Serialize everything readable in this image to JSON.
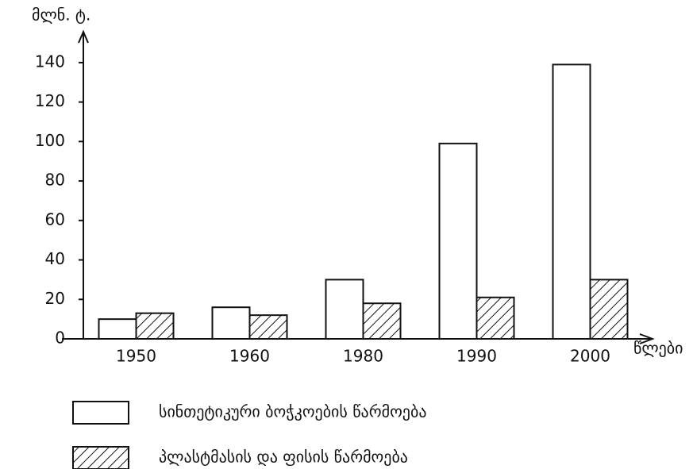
{
  "chart_data": {
    "type": "bar",
    "y_label": "მლნ. ტ.",
    "x_label": "წლები",
    "categories": [
      "1950",
      "1960",
      "1980",
      "1990",
      "2000"
    ],
    "series": [
      {
        "name": "სინთეტიკური ბოჭკოების წარმოება",
        "color": "#ffffff",
        "pattern": "solid",
        "values": [
          10,
          16,
          30,
          99,
          139
        ]
      },
      {
        "name": "პლასტმასის და ფისის წარმოება",
        "color": "#ffffff",
        "pattern": "hatch",
        "values": [
          13,
          12,
          18,
          21,
          30
        ]
      }
    ],
    "ylim": [
      0,
      150
    ],
    "yticks": [
      0,
      20,
      40,
      60,
      80,
      100,
      120,
      140
    ],
    "grid": false
  }
}
